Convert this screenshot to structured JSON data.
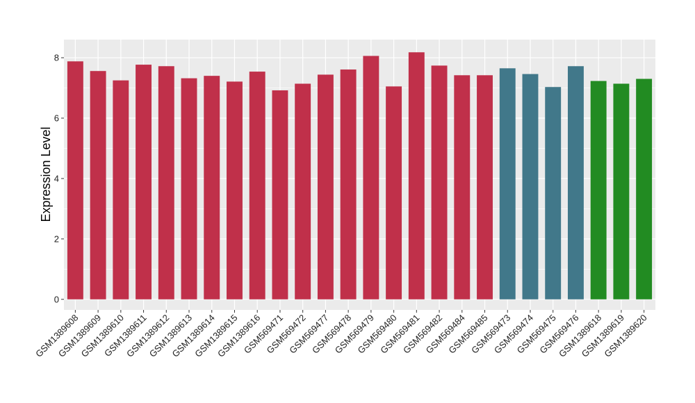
{
  "chart_data": {
    "type": "bar",
    "title": "",
    "xlabel": "",
    "ylabel": "Expression Level",
    "ylim": [
      -0.35,
      8.6
    ],
    "yticks": [
      0,
      2,
      4,
      6,
      8
    ],
    "grid": true,
    "legend": "none",
    "categories": [
      "GSM1389608",
      "GSM1389609",
      "GSM1389610",
      "GSM1389611",
      "GSM1389612",
      "GSM1389613",
      "GSM1389614",
      "GSM1389615",
      "GSM1389616",
      "GSM569471",
      "GSM569472",
      "GSM569477",
      "GSM569478",
      "GSM569479",
      "GSM569480",
      "GSM569481",
      "GSM569482",
      "GSM569484",
      "GSM569485",
      "GSM569473",
      "GSM569474",
      "GSM569475",
      "GSM569476",
      "GSM1389618",
      "GSM1389619",
      "GSM1389620"
    ],
    "values": [
      7.88,
      7.56,
      7.25,
      7.77,
      7.72,
      7.32,
      7.4,
      7.21,
      7.54,
      6.92,
      7.14,
      7.44,
      7.61,
      8.06,
      7.05,
      8.18,
      7.74,
      7.42,
      7.42,
      7.65,
      7.46,
      7.03,
      7.72,
      7.23,
      7.14,
      7.3
    ],
    "bar_colors": [
      "#C0304A",
      "#C0304A",
      "#C0304A",
      "#C0304A",
      "#C0304A",
      "#C0304A",
      "#C0304A",
      "#C0304A",
      "#C0304A",
      "#C0304A",
      "#C0304A",
      "#C0304A",
      "#C0304A",
      "#C0304A",
      "#C0304A",
      "#C0304A",
      "#C0304A",
      "#C0304A",
      "#C0304A",
      "#41788A",
      "#41788A",
      "#41788A",
      "#41788A",
      "#228B22",
      "#228B22",
      "#228B22"
    ],
    "panel_background": "#EBEBEB",
    "grid_color": "#FFFFFF"
  }
}
